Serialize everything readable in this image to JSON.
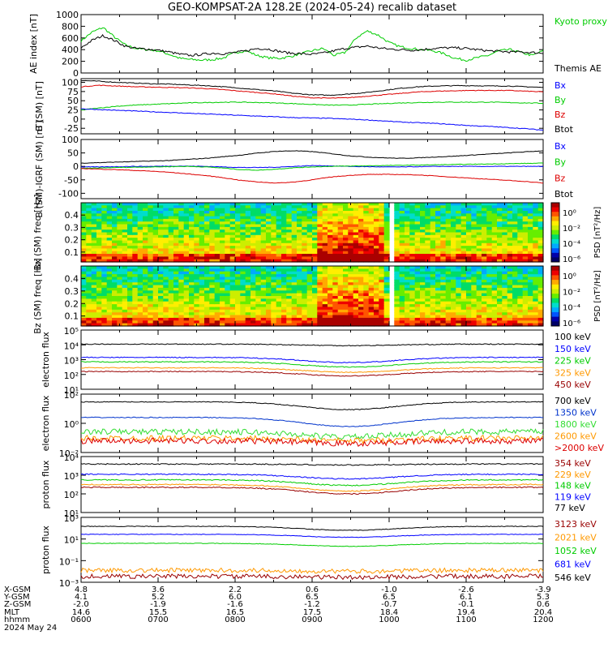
{
  "title": "GEO-KOMPSAT-2A 128.2E (2024-05-24) recalib dataset",
  "colors": {
    "black": "#000000",
    "blue": "#0000ff",
    "green": "#00cc00",
    "red": "#dd0000",
    "orange": "#ff9900",
    "darkred": "#990000",
    "lightgreen": "#33dd33",
    "navy": "#0033cc"
  },
  "footer": {
    "row_labels": [
      "X-GSM",
      "Y-GSM",
      "Z-GSM",
      "MLT",
      "hhmm",
      "2024 May 24"
    ],
    "columns": [
      {
        "x": "4.8",
        "y": "4.1",
        "z": "-2.0",
        "mlt": "14.6",
        "hhmm": "0600"
      },
      {
        "x": "3.6",
        "y": "5.2",
        "z": "-1.9",
        "mlt": "15.5",
        "hhmm": "0700"
      },
      {
        "x": "2.2",
        "y": "6.0",
        "z": "-1.6",
        "mlt": "16.5",
        "hhmm": "0800"
      },
      {
        "x": "0.6",
        "y": "6.5",
        "z": "-1.2",
        "mlt": "17.5",
        "hhmm": "0900"
      },
      {
        "x": "-1.0",
        "y": "6.5",
        "z": "-0.7",
        "mlt": "18.4",
        "hhmm": "1000"
      },
      {
        "x": "-2.6",
        "y": "6.1",
        "z": "-0.1",
        "mlt": "19.4",
        "hhmm": "1100"
      },
      {
        "x": "-3.9",
        "y": "5.3",
        "z": "0.6",
        "mlt": "20.4",
        "hhmm": "1200"
      }
    ]
  },
  "chart_data": [
    {
      "type": "line",
      "panel": "ae",
      "ylabel": "AE index [nT]",
      "yticks": [
        "1000",
        "800",
        "600",
        "400",
        "200",
        "0"
      ],
      "ylim": [
        0,
        1000
      ],
      "legend": [
        {
          "name": "Kyoto proxy AE",
          "color": "#00cc00"
        },
        {
          "name": "Themis AE",
          "color": "#000000"
        }
      ],
      "series": [
        {
          "name": "Kyoto proxy AE",
          "color": "#00cc00",
          "values": [
            550,
            700,
            780,
            620,
            480,
            420,
            400,
            380,
            320,
            250,
            230,
            220,
            230,
            260,
            350,
            380,
            300,
            260,
            250,
            280,
            330,
            380,
            420,
            300,
            350,
            600,
            720,
            650,
            520,
            450,
            420,
            400,
            380,
            330,
            250,
            220,
            260,
            300,
            380,
            400,
            350,
            300,
            380
          ]
        },
        {
          "name": "Themis AE",
          "color": "#000000",
          "values": [
            430,
            560,
            640,
            560,
            460,
            420,
            410,
            390,
            360,
            320,
            300,
            320,
            340,
            330,
            350,
            380,
            420,
            410,
            370,
            340,
            330,
            320,
            340,
            380,
            420,
            440,
            460,
            430,
            410,
            400,
            390,
            400,
            420,
            430,
            430,
            420,
            400,
            380,
            370,
            360,
            360,
            350,
            340
          ]
        }
      ]
    },
    {
      "type": "line",
      "panel": "b_sm",
      "ylabel": "B (SM) [nT]",
      "yticks": [
        "100",
        "75",
        "50",
        "25",
        "0",
        "-25"
      ],
      "ylim": [
        -40,
        110
      ],
      "legend": [
        {
          "name": "Bx",
          "color": "#0000ff"
        },
        {
          "name": "By",
          "color": "#00cc00"
        },
        {
          "name": "Bz",
          "color": "#dd0000"
        },
        {
          "name": "Btot",
          "color": "#000000"
        }
      ],
      "series": [
        {
          "name": "Btot",
          "color": "#000000",
          "values": [
            105,
            103,
            100,
            98,
            96,
            95,
            93,
            91,
            88,
            84,
            80,
            76,
            70,
            66,
            65,
            68,
            72,
            78,
            84,
            88,
            90,
            91,
            91,
            90,
            90,
            88,
            86
          ]
        },
        {
          "name": "Bz",
          "color": "#dd0000",
          "values": [
            88,
            92,
            90,
            88,
            87,
            86,
            85,
            83,
            80,
            76,
            72,
            68,
            62,
            58,
            57,
            58,
            62,
            66,
            70,
            74,
            76,
            77,
            78,
            78,
            78,
            76,
            74
          ]
        },
        {
          "name": "By",
          "color": "#00cc00",
          "values": [
            25,
            30,
            35,
            38,
            40,
            42,
            44,
            45,
            46,
            46,
            45,
            44,
            42,
            40,
            38,
            38,
            40,
            42,
            44,
            45,
            46,
            46,
            46,
            46,
            45,
            44,
            43
          ]
        },
        {
          "name": "Bx",
          "color": "#0000ff",
          "values": [
            28,
            26,
            24,
            22,
            20,
            18,
            16,
            14,
            12,
            10,
            8,
            6,
            4,
            3,
            2,
            0,
            -2,
            -5,
            -8,
            -10,
            -12,
            -15,
            -18,
            -20,
            -23,
            -26,
            -30
          ]
        }
      ]
    },
    {
      "type": "line",
      "panel": "b_igrf",
      "ylabel": "B (SM)-IGRF (SM) [nT]",
      "yticks": [
        "100",
        "50",
        "0",
        "-50",
        "-100"
      ],
      "ylim": [
        -120,
        100
      ],
      "legend": [
        {
          "name": "Bx",
          "color": "#0000ff"
        },
        {
          "name": "By",
          "color": "#00cc00"
        },
        {
          "name": "Bz",
          "color": "#dd0000"
        },
        {
          "name": "Btot",
          "color": "#000000"
        }
      ],
      "series": [
        {
          "name": "Btot",
          "color": "#000000",
          "values": [
            12,
            14,
            16,
            18,
            20,
            22,
            26,
            30,
            36,
            42,
            50,
            56,
            58,
            55,
            48,
            40,
            35,
            32,
            30,
            32,
            35,
            38,
            42,
            46,
            50,
            54,
            58
          ]
        },
        {
          "name": "Bx",
          "color": "#0000ff",
          "values": [
            -2,
            -2,
            -1,
            0,
            0,
            1,
            1,
            0,
            -2,
            -4,
            -4,
            -3,
            0,
            3,
            2,
            0,
            -1,
            -2,
            -2,
            -1,
            0,
            0,
            0,
            0,
            0,
            0,
            0
          ]
        },
        {
          "name": "By",
          "color": "#00cc00",
          "values": [
            -8,
            -6,
            -4,
            -3,
            -2,
            -1,
            0,
            -2,
            -6,
            -12,
            -14,
            -10,
            -5,
            -2,
            0,
            1,
            2,
            3,
            4,
            5,
            6,
            7,
            8,
            9,
            10,
            11,
            12
          ]
        },
        {
          "name": "Bz",
          "color": "#dd0000",
          "values": [
            -8,
            -10,
            -12,
            -15,
            -18,
            -22,
            -28,
            -34,
            -42,
            -52,
            -58,
            -62,
            -58,
            -50,
            -40,
            -34,
            -30,
            -30,
            -30,
            -32,
            -36,
            -40,
            -44,
            -48,
            -52,
            -56,
            -62
          ]
        }
      ]
    },
    {
      "type": "heatmap",
      "panel": "bx_spec",
      "ylabel": "Bx (SM) freq [Hz]",
      "yticks": [
        "0.4",
        "0.3",
        "0.2",
        "0.1"
      ],
      "ylim": [
        0.02,
        0.5
      ],
      "colorbar_label": "PSD [nT²/Hz]",
      "colorbar_ticks": [
        "10⁰",
        "10⁻²",
        "10⁻⁴",
        "10⁻⁶"
      ]
    },
    {
      "type": "heatmap",
      "panel": "bz_spec",
      "ylabel": "Bz (SM) freq [Hz]",
      "yticks": [
        "0.4",
        "0.3",
        "0.2",
        "0.1"
      ],
      "ylim": [
        0.02,
        0.5
      ],
      "colorbar_label": "PSD [nT²/Hz]",
      "colorbar_ticks": [
        "10⁰",
        "10⁻²",
        "10⁻⁴",
        "10⁻⁶"
      ]
    },
    {
      "type": "line",
      "panel": "e_low",
      "log": true,
      "ylabel": "electron flux",
      "yticks": [
        "10⁵",
        "10⁴",
        "10³",
        "10²",
        "10¹"
      ],
      "ylim_exp": [
        1,
        5
      ],
      "legend": [
        {
          "name": "100 keV",
          "color": "#000000"
        },
        {
          "name": "150 keV",
          "color": "#0000ff"
        },
        {
          "name": "225 keV",
          "color": "#00cc00"
        },
        {
          "name": "325 keV",
          "color": "#ff9900"
        },
        {
          "name": "450 keV",
          "color": "#990000"
        }
      ],
      "series": [
        {
          "name": "100 keV",
          "color": "#000000",
          "level": 4.05,
          "dip": 0.1
        },
        {
          "name": "150 keV",
          "color": "#0000ff",
          "level": 3.15,
          "dip": 0.35
        },
        {
          "name": "225 keV",
          "color": "#00cc00",
          "level": 2.85,
          "dip": 0.35
        },
        {
          "name": "325 keV",
          "color": "#ff9900",
          "level": 2.45,
          "dip": 0.3
        },
        {
          "name": "450 keV",
          "color": "#990000",
          "level": 2.2,
          "dip": 0.3
        }
      ]
    },
    {
      "type": "line",
      "panel": "e_high",
      "log": true,
      "ylabel": "electron flux",
      "yticks": [
        "10²",
        "10⁰",
        "10⁻²"
      ],
      "ylim_exp": [
        -2.5,
        2
      ],
      "legend": [
        {
          "name": "700 keV",
          "color": "#000000"
        },
        {
          "name": "1350 keV",
          "color": "#0033cc"
        },
        {
          "name": "1800 keV",
          "color": "#33dd33"
        },
        {
          "name": "2600 keV",
          "color": "#ff9900"
        },
        {
          "name": ">2000 keV",
          "color": "#dd0000"
        }
      ],
      "series": [
        {
          "name": "700 keV",
          "color": "#000000",
          "level": 1.4,
          "dip": 0.6
        },
        {
          "name": "1350 keV",
          "color": "#0033cc",
          "level": 0.2,
          "dip": 0.7
        },
        {
          "name": "1800 keV",
          "color": "#33dd33",
          "level": -0.9,
          "dip": 0.4
        },
        {
          "name": "2600 keV",
          "color": "#ff9900",
          "level": -1.4,
          "dip": 0.2
        },
        {
          "name": ">2000 keV",
          "color": "#dd0000",
          "level": -1.6,
          "dip": 0.2
        }
      ]
    },
    {
      "type": "line",
      "panel": "p_low",
      "log": true,
      "ylabel": "proton flux",
      "yticks": [
        "10⁴",
        "10³",
        "10²",
        "10¹"
      ],
      "ylim_exp": [
        1,
        4
      ],
      "legend": [
        {
          "name": "354 keV",
          "color": "#990000"
        },
        {
          "name": "229 keV",
          "color": "#ff9900"
        },
        {
          "name": "148 keV",
          "color": "#00cc00"
        },
        {
          "name": "119 keV",
          "color": "#0000ff"
        },
        {
          "name": "77 keV",
          "color": "#000000"
        }
      ],
      "series": [
        {
          "name": "77 keV",
          "color": "#000000",
          "level": 3.6,
          "dip": 0.05
        },
        {
          "name": "119 keV",
          "color": "#0000ff",
          "level": 3.05,
          "dip": 0.25
        },
        {
          "name": "148 keV",
          "color": "#00cc00",
          "level": 2.75,
          "dip": 0.3
        },
        {
          "name": "229 keV",
          "color": "#ff9900",
          "level": 2.5,
          "dip": 0.35
        },
        {
          "name": "354 keV",
          "color": "#990000",
          "level": 2.35,
          "dip": 0.35
        }
      ]
    },
    {
      "type": "line",
      "panel": "p_high",
      "log": true,
      "ylabel": "proton flux",
      "yticks": [
        "10³",
        "10¹",
        "10⁻¹",
        "10⁻³"
      ],
      "ylim_exp": [
        -3.5,
        3
      ],
      "legend": [
        {
          "name": "3123 keV",
          "color": "#990000"
        },
        {
          "name": "2021 keV",
          "color": "#ff9900"
        },
        {
          "name": "1052 keV",
          "color": "#00cc00"
        },
        {
          "name": "681 keV",
          "color": "#0000ff"
        },
        {
          "name": "546 keV",
          "color": "#000000"
        }
      ],
      "series": [
        {
          "name": "546 keV",
          "color": "#000000",
          "level": 2.1,
          "dip": 0.4
        },
        {
          "name": "681 keV",
          "color": "#0000ff",
          "level": 1.3,
          "dip": 0.3
        },
        {
          "name": "1052 keV",
          "color": "#00cc00",
          "level": 0.4,
          "dip": 0.3
        },
        {
          "name": "2021 keV",
          "color": "#ff9900",
          "level": -2.3,
          "dip": 0.1
        },
        {
          "name": "3123 keV",
          "color": "#990000",
          "level": -2.9,
          "dip": 0.1
        }
      ]
    }
  ]
}
